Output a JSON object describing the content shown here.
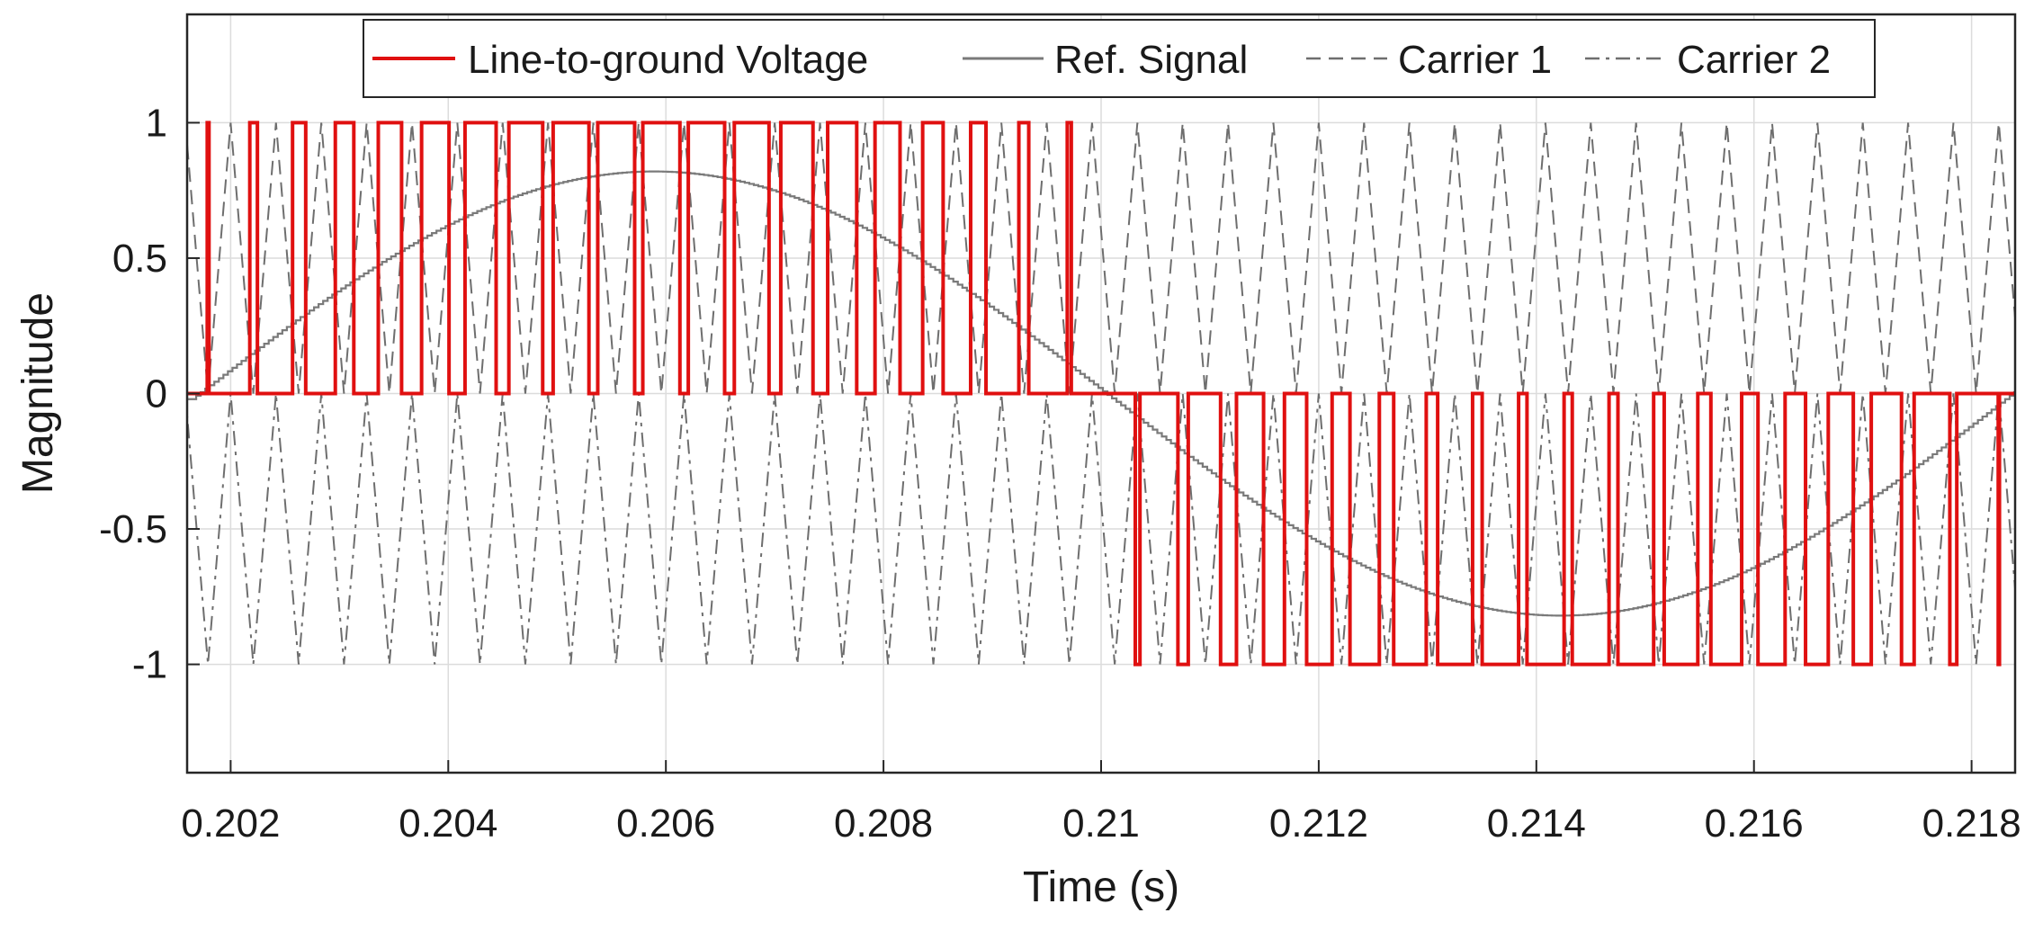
{
  "chart_data": {
    "type": "line",
    "title": "",
    "xlabel": "Time (s)",
    "ylabel": "Magnitude",
    "xlim": [
      0.2016,
      0.2184
    ],
    "ylim": [
      -1.4,
      1.4
    ],
    "grid": true,
    "legend_position": "top",
    "xticks": [
      0.202,
      0.204,
      0.206,
      0.208,
      0.21,
      0.212,
      0.214,
      0.216,
      0.218
    ],
    "xtick_labels": [
      "0.202",
      "0.204",
      "0.206",
      "0.208",
      "0.21",
      "0.212",
      "0.214",
      "0.216",
      "0.218"
    ],
    "yticks": [
      1,
      0.5,
      0,
      -0.5,
      -1
    ],
    "ytick_labels": [
      "1",
      "0.5",
      "0",
      "-0.5",
      "-1"
    ],
    "fundamental_hz": 60,
    "carrier_hz": 2400,
    "modulation_index": 0.82,
    "ref_zero_crossing_s": 0.201667,
    "series": [
      {
        "name": "Line-to-ground Voltage",
        "style": "solid",
        "color": "#e01010",
        "levels": [
          -1,
          0,
          1
        ]
      },
      {
        "name": "Ref. Signal",
        "style": "solid",
        "color": "#7a7a7a",
        "amplitude": 0.82
      },
      {
        "name": "Carrier 1",
        "style": "dashed",
        "color": "#6e6e6e",
        "range": [
          0,
          1
        ]
      },
      {
        "name": "Carrier 2",
        "style": "dashdot",
        "color": "#6e6e6e",
        "range": [
          -1,
          0
        ]
      }
    ]
  }
}
